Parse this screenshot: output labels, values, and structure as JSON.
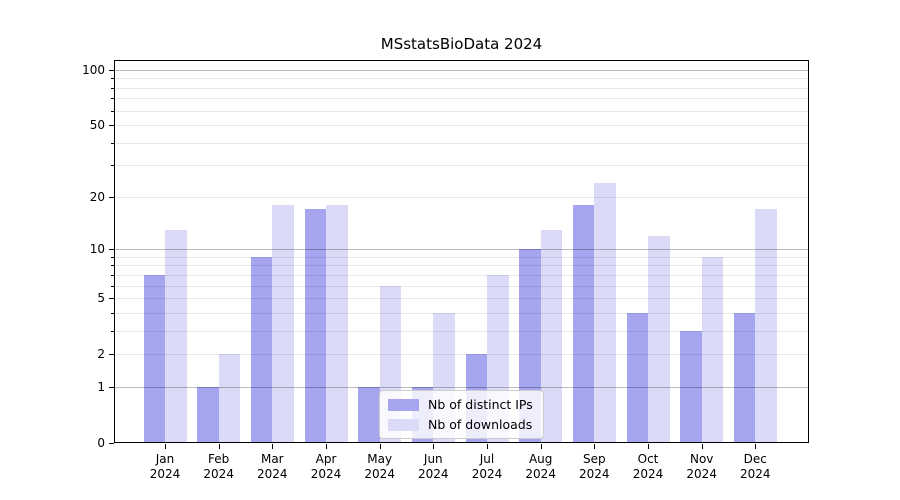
{
  "title": "MSstatsBioData 2024",
  "chart_data": {
    "type": "bar",
    "title": "MSstatsBioData 2024",
    "categories": [
      "Jan",
      "Feb",
      "Mar",
      "Apr",
      "May",
      "Jun",
      "Jul",
      "Aug",
      "Sep",
      "Oct",
      "Nov",
      "Dec"
    ],
    "year_label": "2024",
    "series": [
      {
        "name": "Nb of distinct IPs",
        "color": "#a5a5f0",
        "values": [
          7,
          1,
          9,
          17,
          1,
          1,
          2,
          10,
          18,
          4,
          3,
          4
        ]
      },
      {
        "name": "Nb of downloads",
        "color": "#dbdbf8",
        "values": [
          13,
          2,
          18,
          18,
          6,
          4,
          7,
          13,
          24,
          12,
          9,
          17
        ]
      }
    ],
    "yscale": "log1p",
    "ylim": [
      0,
      113
    ],
    "yticks": [
      0,
      1,
      2,
      5,
      10,
      20,
      50,
      100
    ],
    "major_gridlines": [
      1,
      10,
      100
    ],
    "minor_gridlines": [
      2,
      3,
      4,
      5,
      6,
      7,
      8,
      9,
      20,
      30,
      40,
      50,
      60,
      70,
      80,
      90
    ],
    "grid": true,
    "legend_position": "lower center"
  }
}
